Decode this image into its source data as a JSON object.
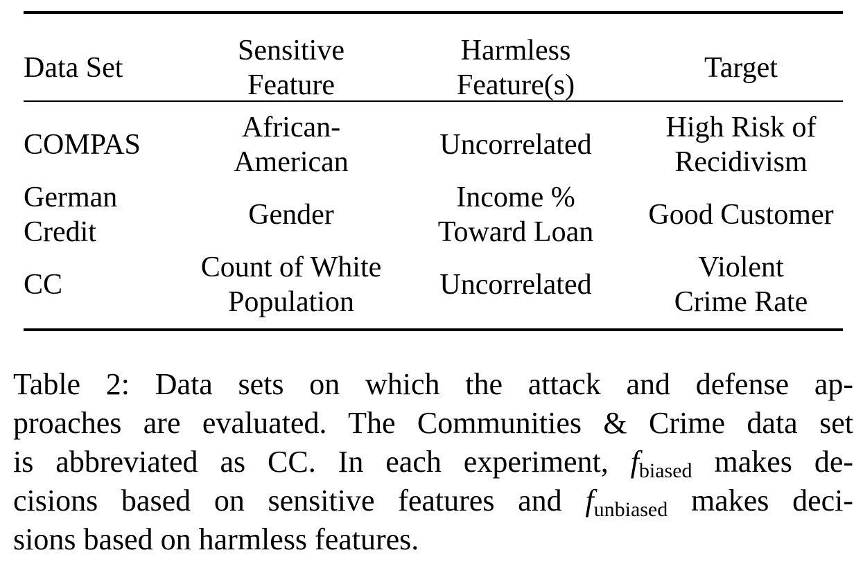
{
  "table": {
    "headers": [
      [
        "Data Set"
      ],
      [
        "Sensitive",
        "Feature"
      ],
      [
        "Harmless",
        "Feature(s)"
      ],
      [
        "Target"
      ]
    ],
    "rows": [
      {
        "dataset": [
          "COMPAS"
        ],
        "sensitive": [
          "African-",
          "American"
        ],
        "harmless": [
          "Uncorrelated"
        ],
        "target": [
          "High Risk of",
          "Recidivism"
        ]
      },
      {
        "dataset": [
          "German",
          "Credit"
        ],
        "sensitive": [
          "Gender"
        ],
        "harmless": [
          "Income %",
          "Toward Loan"
        ],
        "target": [
          "Good Customer"
        ]
      },
      {
        "dataset": [
          "CC"
        ],
        "sensitive": [
          "Count of White",
          "Population"
        ],
        "harmless": [
          "Uncorrelated"
        ],
        "target": [
          "Violent",
          "Crime Rate"
        ]
      }
    ]
  },
  "caption": {
    "line1": "Table 2: Data sets on which the attack and defense ap-",
    "line2": "proaches are evaluated. The Communities & Crime data set",
    "line3_pre": "is abbreviated as CC. In each experiment,",
    "f_symbol": "f",
    "sub_biased": "biased",
    "line3_post": "makes de-",
    "line4_pre": "cisions based on sensitive features and",
    "sub_unbiased": "unbiased",
    "line4_post": "makes deci-",
    "line5": "sions based on harmless features."
  }
}
